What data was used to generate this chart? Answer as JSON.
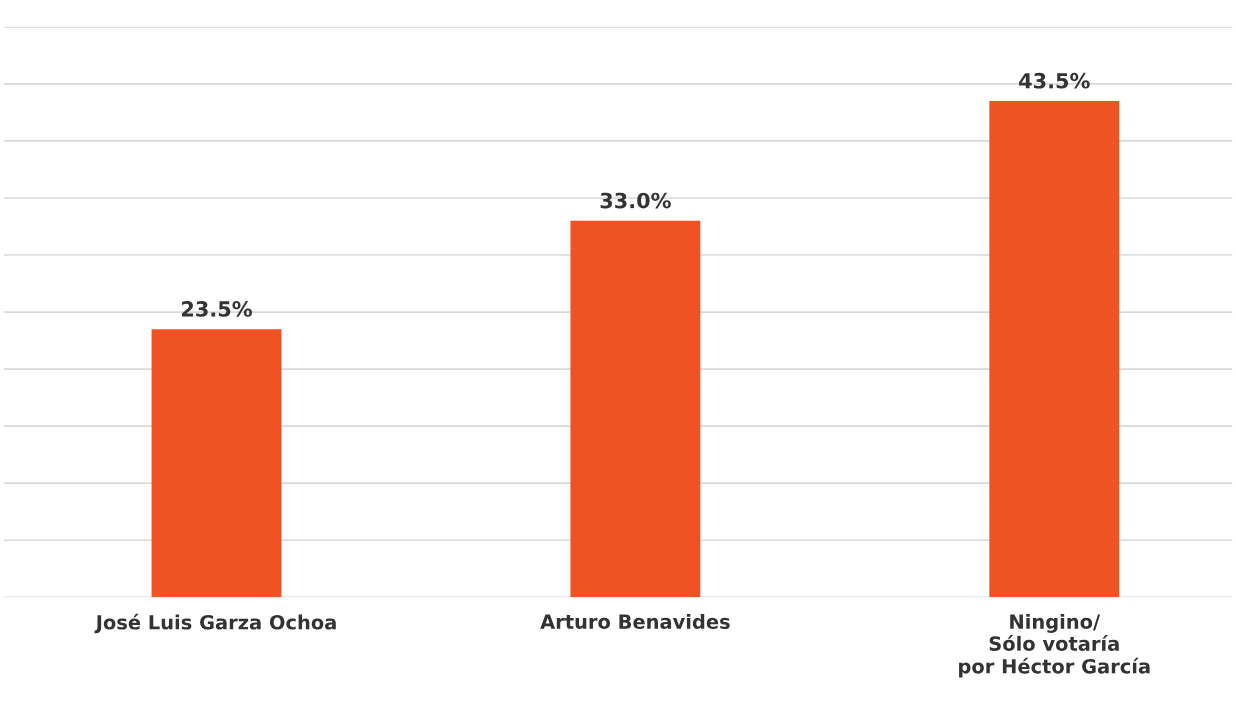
{
  "chart_data": {
    "type": "bar",
    "categories": [
      "José Luis Garza Ochoa",
      "Arturo Benavides",
      "Ningino/\nSólo votaría\npor Héctor García"
    ],
    "values": [
      23.5,
      33.0,
      43.5
    ],
    "value_labels": [
      "23.5%",
      "33.0%",
      "43.5%"
    ],
    "color": "#f05323",
    "ylim": [
      0,
      50
    ],
    "yticks": [
      {
        "value": 0,
        "label": null
      },
      {
        "value": 5,
        "label": null
      },
      {
        "value": 10,
        "label": null
      },
      {
        "value": 15,
        "label": null
      },
      {
        "value": 20,
        "label": null
      },
      {
        "value": 25,
        "label": null
      },
      {
        "value": 30,
        "label": null
      },
      {
        "value": 35,
        "label": null
      },
      {
        "value": 40,
        "label": null
      },
      {
        "value": 45,
        "label": null
      },
      {
        "value": 50,
        "label": null
      }
    ],
    "grid": "y",
    "tick_labels": "x",
    "legend": false
  }
}
